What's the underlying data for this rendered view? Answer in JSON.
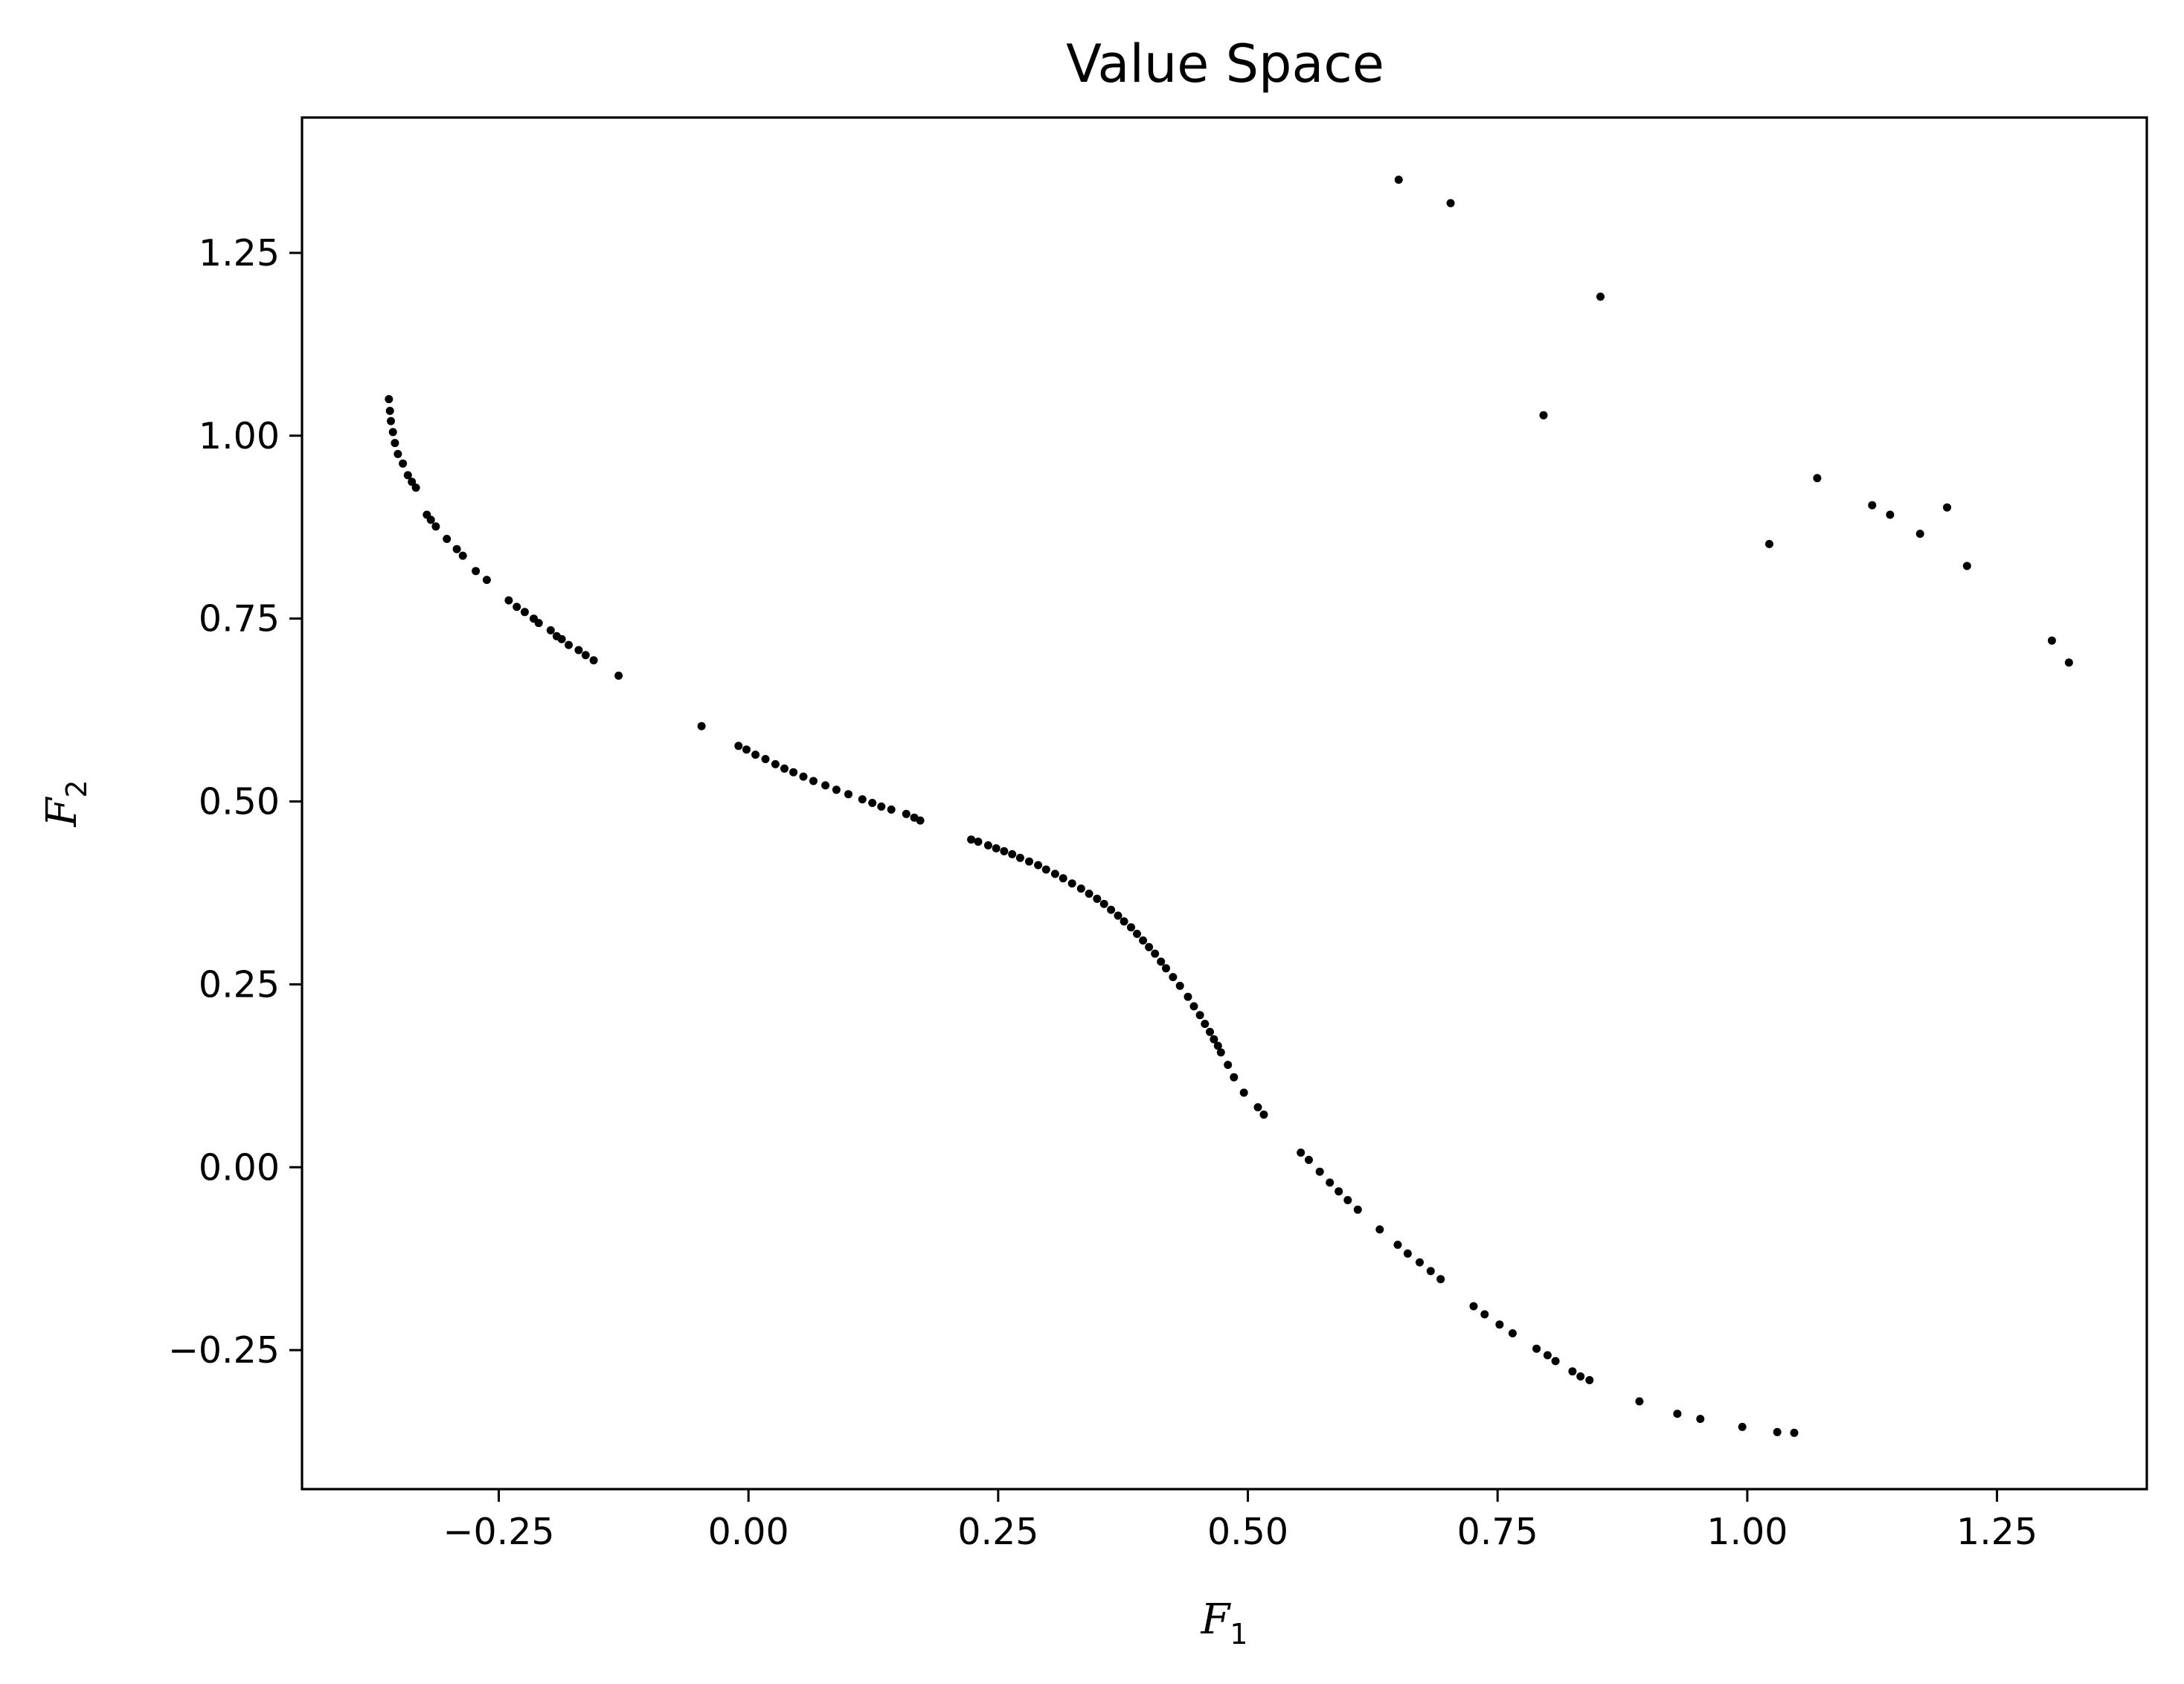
{
  "chart_data": {
    "type": "scatter",
    "title": "Value Space",
    "xlabel": "F",
    "xlabel_sub": "1",
    "ylabel": "F",
    "ylabel_sub": "2",
    "xlim": [
      -0.447,
      1.4
    ],
    "ylim": [
      -0.44,
      1.435
    ],
    "xticks": [
      -0.25,
      0.0,
      0.25,
      0.5,
      0.75,
      1.0,
      1.25
    ],
    "xtick_labels": [
      "−0.25",
      "0.00",
      "0.25",
      "0.50",
      "0.75",
      "1.00",
      "1.25"
    ],
    "yticks": [
      -0.25,
      0.0,
      0.25,
      0.5,
      0.75,
      1.0,
      1.25
    ],
    "ytick_labels": [
      "−0.25",
      "0.00",
      "0.25",
      "0.50",
      "0.75",
      "1.00",
      "1.25"
    ],
    "grid": false,
    "legend": "none",
    "marker_color": "#000000",
    "points": [
      [
        -0.36,
        1.05
      ],
      [
        -0.359,
        1.034
      ],
      [
        -0.358,
        1.02
      ],
      [
        -0.356,
        1.005
      ],
      [
        -0.354,
        0.99
      ],
      [
        -0.351,
        0.975
      ],
      [
        -0.346,
        0.962
      ],
      [
        -0.341,
        0.946
      ],
      [
        -0.337,
        0.937
      ],
      [
        -0.333,
        0.929
      ],
      [
        -0.322,
        0.892
      ],
      [
        -0.318,
        0.885
      ],
      [
        -0.313,
        0.876
      ],
      [
        -0.302,
        0.859
      ],
      [
        -0.292,
        0.845
      ],
      [
        -0.286,
        0.836
      ],
      [
        -0.273,
        0.815
      ],
      [
        -0.262,
        0.803
      ],
      [
        -0.24,
        0.775
      ],
      [
        -0.232,
        0.766
      ],
      [
        -0.224,
        0.759
      ],
      [
        -0.215,
        0.75
      ],
      [
        -0.21,
        0.744
      ],
      [
        -0.198,
        0.734
      ],
      [
        -0.192,
        0.726
      ],
      [
        -0.187,
        0.722
      ],
      [
        -0.18,
        0.714
      ],
      [
        -0.17,
        0.707
      ],
      [
        -0.163,
        0.7
      ],
      [
        -0.155,
        0.693
      ],
      [
        -0.13,
        0.672
      ],
      [
        -0.047,
        0.603
      ],
      [
        -0.01,
        0.576
      ],
      [
        -0.002,
        0.571
      ],
      [
        0.007,
        0.564
      ],
      [
        0.017,
        0.558
      ],
      [
        0.027,
        0.551
      ],
      [
        0.036,
        0.545
      ],
      [
        0.045,
        0.54
      ],
      [
        0.055,
        0.534
      ],
      [
        0.065,
        0.528
      ],
      [
        0.077,
        0.522
      ],
      [
        0.088,
        0.516
      ],
      [
        0.1,
        0.51
      ],
      [
        0.114,
        0.503
      ],
      [
        0.124,
        0.498
      ],
      [
        0.133,
        0.493
      ],
      [
        0.143,
        0.489
      ],
      [
        0.158,
        0.483
      ],
      [
        0.166,
        0.478
      ],
      [
        0.172,
        0.474
      ],
      [
        0.223,
        0.448
      ],
      [
        0.23,
        0.445
      ],
      [
        0.24,
        0.44
      ],
      [
        0.248,
        0.436
      ],
      [
        0.256,
        0.432
      ],
      [
        0.264,
        0.428
      ],
      [
        0.272,
        0.423
      ],
      [
        0.281,
        0.418
      ],
      [
        0.29,
        0.413
      ],
      [
        0.298,
        0.407
      ],
      [
        0.307,
        0.401
      ],
      [
        0.315,
        0.395
      ],
      [
        0.324,
        0.388
      ],
      [
        0.333,
        0.381
      ],
      [
        0.341,
        0.374
      ],
      [
        0.349,
        0.367
      ],
      [
        0.356,
        0.36
      ],
      [
        0.363,
        0.352
      ],
      [
        0.37,
        0.344
      ],
      [
        0.376,
        0.336
      ],
      [
        0.383,
        0.328
      ],
      [
        0.389,
        0.319
      ],
      [
        0.395,
        0.31
      ],
      [
        0.401,
        0.301
      ],
      [
        0.407,
        0.292
      ],
      [
        0.413,
        0.281
      ],
      [
        0.418,
        0.272
      ],
      [
        0.425,
        0.26
      ],
      [
        0.432,
        0.248
      ],
      [
        0.44,
        0.233
      ],
      [
        0.446,
        0.22
      ],
      [
        0.452,
        0.208
      ],
      [
        0.457,
        0.196
      ],
      [
        0.462,
        0.185
      ],
      [
        0.466,
        0.175
      ],
      [
        0.47,
        0.166
      ],
      [
        0.473,
        0.157
      ],
      [
        0.48,
        0.14
      ],
      [
        0.486,
        0.123
      ],
      [
        0.496,
        0.102
      ],
      [
        0.51,
        0.082
      ],
      [
        0.516,
        0.072
      ],
      [
        0.553,
        0.02
      ],
      [
        0.561,
        0.01
      ],
      [
        0.572,
        -0.006
      ],
      [
        0.582,
        -0.021
      ],
      [
        0.591,
        -0.033
      ],
      [
        0.6,
        -0.045
      ],
      [
        0.61,
        -0.058
      ],
      [
        0.632,
        -0.085
      ],
      [
        0.65,
        -0.106
      ],
      [
        0.66,
        -0.118
      ],
      [
        0.672,
        -0.13
      ],
      [
        0.683,
        -0.142
      ],
      [
        0.693,
        -0.153
      ],
      [
        0.726,
        -0.19
      ],
      [
        0.737,
        -0.201
      ],
      [
        0.752,
        -0.215
      ],
      [
        0.765,
        -0.227
      ],
      [
        0.789,
        -0.248
      ],
      [
        0.8,
        -0.257
      ],
      [
        0.808,
        -0.265
      ],
      [
        0.825,
        -0.279
      ],
      [
        0.833,
        -0.286
      ],
      [
        0.842,
        -0.291
      ],
      [
        0.892,
        -0.32
      ],
      [
        0.93,
        -0.337
      ],
      [
        0.953,
        -0.344
      ],
      [
        0.995,
        -0.355
      ],
      [
        1.03,
        -0.362
      ],
      [
        1.047,
        -0.363
      ],
      [
        0.651,
        1.35
      ],
      [
        0.703,
        1.318
      ],
      [
        0.853,
        1.19
      ],
      [
        0.796,
        1.028
      ],
      [
        1.022,
        0.852
      ],
      [
        1.07,
        0.942
      ],
      [
        1.125,
        0.905
      ],
      [
        1.143,
        0.892
      ],
      [
        1.2,
        0.902
      ],
      [
        1.173,
        0.866
      ],
      [
        1.22,
        0.822
      ],
      [
        1.305,
        0.72
      ],
      [
        1.322,
        0.69
      ]
    ]
  }
}
